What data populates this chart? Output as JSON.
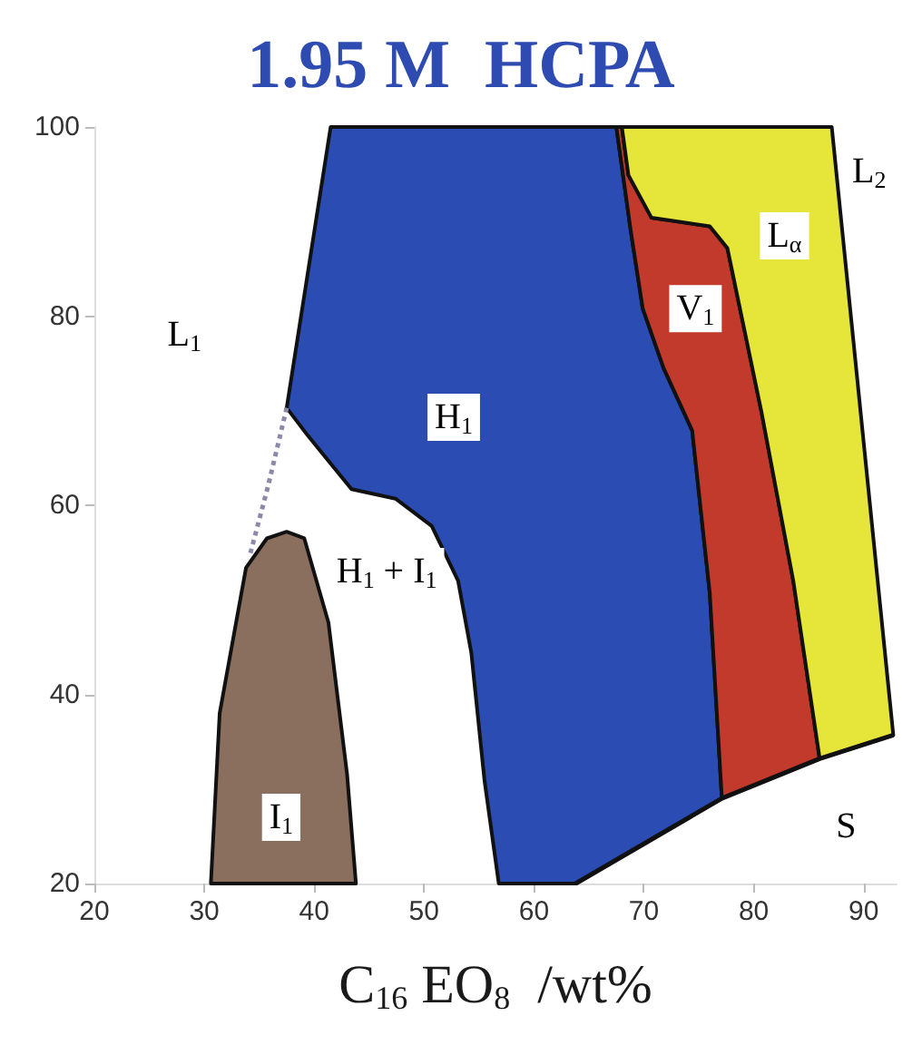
{
  "chart_data": {
    "type": "area",
    "title": "1.95 M  HCPA",
    "xlabel": "C$_{16}$ EO$_{8}$  /wt%",
    "xlim": [
      20,
      93
    ],
    "xticks": [
      20,
      30,
      40,
      50,
      60,
      70,
      80,
      90
    ],
    "ylim": [
      20,
      100
    ],
    "yticks": [
      20,
      40,
      60,
      80,
      100
    ],
    "grid": false,
    "series": [
      {
        "color": "#2a4cb3",
        "x": [
          41.5,
          37.5,
          39.4,
          43.4,
          47.4,
          50.7,
          53.1,
          54.3,
          55.5,
          56.8,
          63.8,
          77.1,
          76.0,
          74.4,
          71.8,
          69.9,
          68.8,
          67.5
        ],
        "values": [
          100,
          70.3,
          67.4,
          61.7,
          60.7,
          57.8,
          52,
          44.4,
          30.9,
          20,
          20,
          29,
          50.7,
          67.9,
          74.5,
          80.8,
          89.1,
          100
        ]
      },
      {
        "color": "#c13a2c",
        "x": [
          67.5,
          68.8,
          69.9,
          71.8,
          74.4,
          76.0,
          77.1,
          86.0,
          83.6,
          80.7,
          77.6,
          76.0,
          70.7,
          68.6,
          68.0
        ],
        "values": [
          100,
          89.1,
          80.8,
          74.5,
          67.9,
          50.7,
          29,
          33.2,
          52,
          69.9,
          87.2,
          89.5,
          90.4,
          94.9,
          100
        ]
      },
      {
        "color": "#e6e53a",
        "x": [
          68.0,
          68.6,
          70.7,
          76.0,
          77.6,
          80.7,
          83.6,
          86.0,
          92.7,
          87.1
        ],
        "values": [
          100,
          94.9,
          90.4,
          89.5,
          87.2,
          69.9,
          52,
          33.2,
          35.7,
          100
        ]
      },
      {
        "color": "#8a6e5e",
        "x": [
          30.6,
          31.4,
          33.8,
          35.7,
          37.5,
          39.1,
          41.3,
          43.0,
          43.8
        ],
        "values": [
          20,
          38,
          53.4,
          56.5,
          57.2,
          56.5,
          47.6,
          31.5,
          20
        ]
      },
      {
        "type": "line",
        "color": "#8a8aa8",
        "line_style": "dotted",
        "x": [
          37.5,
          35.8,
          34.1
        ],
        "values": [
          70.3,
          62,
          54.5
        ]
      },
      {
        "type": "line",
        "color": "#111111",
        "line_style": "solid",
        "x": [
          63.8,
          77.1,
          86.0,
          92.7
        ],
        "values": [
          20,
          29,
          33.2,
          35.7
        ]
      }
    ],
    "annotations": [
      {
        "text": "L$_{1}$",
        "x": 28.2,
        "y": 78
      },
      {
        "text": "H$_{1}$",
        "x": 52.7,
        "y": 69.3
      },
      {
        "text": "V$_{1}$",
        "x": 74.7,
        "y": 80.8
      },
      {
        "text": "L$_{α}$",
        "x": 82.8,
        "y": 88.5
      },
      {
        "text": "L$_{2}$",
        "x": 90.5,
        "y": 95.3
      },
      "H$_{1}$ + I$_{1}$",
      {
        "text": "I$_{1}$",
        "x": 37,
        "y": 27
      },
      {
        "text": "S",
        "x": 88.4,
        "y": 26
      }
    ]
  }
}
